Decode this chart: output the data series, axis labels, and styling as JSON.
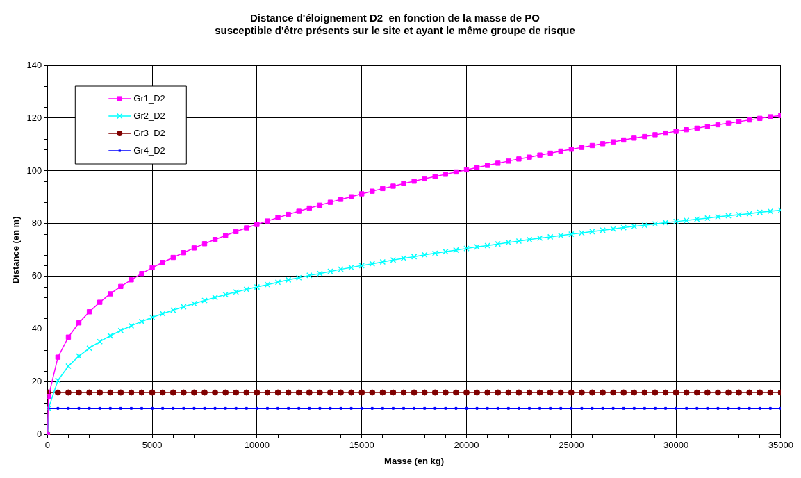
{
  "chart_data": {
    "type": "line",
    "title": "Distance d'éloignement D2  en fonction de la masse de PO\nsusceptible d'être présents sur le site et ayant le même groupe de risque",
    "xlabel": "Masse (en kg)",
    "ylabel": "Distance (en m)",
    "x": [
      0,
      50,
      500,
      1000,
      1500,
      2000,
      2500,
      3000,
      3500,
      4000,
      4500,
      5000,
      5500,
      6000,
      6500,
      7000,
      7500,
      8000,
      8500,
      9000,
      9500,
      10000,
      10500,
      11000,
      11500,
      12000,
      12500,
      13000,
      13500,
      14000,
      14500,
      15000,
      15500,
      16000,
      16500,
      17000,
      17500,
      18000,
      18500,
      19000,
      19500,
      20000,
      20500,
      21000,
      21500,
      22000,
      22500,
      23000,
      23500,
      24000,
      24500,
      25000,
      25500,
      26000,
      26500,
      27000,
      27500,
      28000,
      28500,
      29000,
      29500,
      30000,
      30500,
      31000,
      31500,
      32000,
      32500,
      33000,
      33500,
      34000,
      34500,
      35000
    ],
    "series": [
      {
        "name": "Gr1_D2",
        "color": "#ff00ff",
        "marker": "square",
        "values": [
          0,
          14.5,
          29.4,
          37.0,
          42.4,
          46.6,
          50.2,
          53.4,
          56.2,
          58.7,
          61.1,
          63.3,
          65.3,
          67.2,
          69.0,
          70.8,
          72.4,
          74.0,
          75.5,
          77.0,
          78.4,
          79.7,
          81.0,
          82.3,
          83.5,
          84.7,
          85.9,
          87.0,
          88.1,
          89.2,
          90.2,
          91.3,
          92.3,
          93.3,
          94.2,
          95.2,
          96.1,
          97.0,
          97.9,
          98.7,
          99.6,
          100.4,
          101.3,
          102.1,
          102.9,
          103.7,
          104.5,
          105.2,
          106.0,
          106.7,
          107.5,
          108.2,
          108.9,
          109.6,
          110.3,
          111.0,
          111.7,
          112.4,
          113.0,
          113.7,
          114.3,
          115.0,
          115.6,
          116.2,
          116.9,
          117.5,
          118.1,
          118.7,
          119.3,
          119.9,
          120.5,
          121.0
        ]
      },
      {
        "name": "Gr2_D2",
        "color": "#00ffff",
        "marker": "cross",
        "values": [
          0,
          10,
          20.6,
          26.0,
          29.8,
          32.8,
          35.3,
          37.5,
          39.5,
          41.3,
          42.9,
          44.5,
          45.9,
          47.2,
          48.5,
          49.7,
          50.9,
          52.0,
          53.1,
          54.1,
          55.1,
          56.0,
          56.9,
          57.8,
          58.7,
          59.5,
          60.4,
          61.1,
          61.9,
          62.7,
          63.4,
          64.1,
          64.8,
          65.5,
          66.2,
          66.9,
          67.5,
          68.2,
          68.8,
          69.4,
          70.0,
          70.6,
          71.2,
          71.7,
          72.3,
          72.9,
          73.4,
          74.0,
          74.5,
          75.0,
          75.5,
          76.0,
          76.5,
          77.0,
          77.5,
          78.0,
          78.5,
          79.0,
          79.4,
          79.9,
          80.4,
          80.8,
          81.2,
          81.7,
          82.1,
          82.6,
          83.0,
          83.4,
          83.8,
          84.3,
          84.7,
          85.1
        ]
      },
      {
        "name": "Gr3_D2",
        "color": "#800000",
        "marker": "circle",
        "values": [
          0,
          16,
          16,
          16,
          16,
          16,
          16,
          16,
          16,
          16,
          16,
          16,
          16,
          16,
          16,
          16,
          16,
          16,
          16,
          16,
          16,
          16,
          16,
          16,
          16,
          16,
          16,
          16,
          16,
          16,
          16,
          16,
          16,
          16,
          16,
          16,
          16,
          16,
          16,
          16,
          16,
          16,
          16,
          16,
          16,
          16,
          16,
          16,
          16,
          16,
          16,
          16,
          16,
          16,
          16,
          16,
          16,
          16,
          16,
          16,
          16,
          16,
          16,
          16,
          16,
          16,
          16,
          16,
          16,
          16,
          16,
          16
        ]
      },
      {
        "name": "Gr4_D2",
        "color": "#0000ff",
        "marker": "square",
        "values": [
          0,
          10,
          10,
          10,
          10,
          10,
          10,
          10,
          10,
          10,
          10,
          10,
          10,
          10,
          10,
          10,
          10,
          10,
          10,
          10,
          10,
          10,
          10,
          10,
          10,
          10,
          10,
          10,
          10,
          10,
          10,
          10,
          10,
          10,
          10,
          10,
          10,
          10,
          10,
          10,
          10,
          10,
          10,
          10,
          10,
          10,
          10,
          10,
          10,
          10,
          10,
          10,
          10,
          10,
          10,
          10,
          10,
          10,
          10,
          10,
          10,
          10,
          10,
          10,
          10,
          10,
          10,
          10,
          10,
          10,
          10,
          10
        ]
      }
    ],
    "xlim": [
      0,
      35000
    ],
    "ylim": [
      0,
      140
    ],
    "xticks": [
      0,
      {
        "value": 1000,
        "label": null
      },
      {
        "value": 2000,
        "label": null
      },
      {
        "value": 3000,
        "label": null
      },
      {
        "value": 4000,
        "label": null
      },
      5000,
      {
        "value": 6000,
        "label": null
      },
      {
        "value": 7000,
        "label": null
      },
      {
        "value": 8000,
        "label": null
      },
      {
        "value": 9000,
        "label": null
      },
      10000,
      {
        "value": 11000,
        "label": null
      },
      {
        "value": 12000,
        "label": null
      },
      {
        "value": 13000,
        "label": null
      },
      {
        "value": 14000,
        "label": null
      },
      15000,
      {
        "value": 16000,
        "label": null
      },
      {
        "value": 17000,
        "label": null
      },
      {
        "value": 18000,
        "label": null
      },
      {
        "value": 19000,
        "label": null
      },
      20000,
      {
        "value": 21000,
        "label": null
      },
      {
        "value": 22000,
        "label": null
      },
      {
        "value": 23000,
        "label": null
      },
      {
        "value": 24000,
        "label": null
      },
      25000,
      {
        "value": 26000,
        "label": null
      },
      {
        "value": 27000,
        "label": null
      },
      {
        "value": 28000,
        "label": null
      },
      {
        "value": 29000,
        "label": null
      },
      30000,
      {
        "value": 31000,
        "label": null
      },
      {
        "value": 32000,
        "label": null
      },
      {
        "value": 33000,
        "label": null
      },
      {
        "value": 34000,
        "label": null
      },
      35000
    ],
    "yticks": [
      0,
      {
        "value": 4,
        "label": null
      },
      {
        "value": 8,
        "label": null
      },
      {
        "value": 12,
        "label": null
      },
      {
        "value": 16,
        "label": null
      },
      20,
      {
        "value": 24,
        "label": null
      },
      {
        "value": 28,
        "label": null
      },
      {
        "value": 32,
        "label": null
      },
      {
        "value": 36,
        "label": null
      },
      40,
      {
        "value": 44,
        "label": null
      },
      {
        "value": 48,
        "label": null
      },
      {
        "value": 52,
        "label": null
      },
      {
        "value": 56,
        "label": null
      },
      60,
      {
        "value": 64,
        "label": null
      },
      {
        "value": 68,
        "label": null
      },
      {
        "value": 72,
        "label": null
      },
      {
        "value": 76,
        "label": null
      },
      80,
      {
        "value": 84,
        "label": null
      },
      {
        "value": 88,
        "label": null
      },
      {
        "value": 92,
        "label": null
      },
      {
        "value": 96,
        "label": null
      },
      100,
      {
        "value": 104,
        "label": null
      },
      {
        "value": 108,
        "label": null
      },
      {
        "value": 112,
        "label": null
      },
      {
        "value": 116,
        "label": null
      },
      120,
      {
        "value": 124,
        "label": null
      },
      {
        "value": 128,
        "label": null
      },
      {
        "value": 132,
        "label": null
      },
      {
        "value": 136,
        "label": null
      },
      140
    ],
    "grid": true,
    "legend": "top left",
    "line_style": "solid"
  }
}
